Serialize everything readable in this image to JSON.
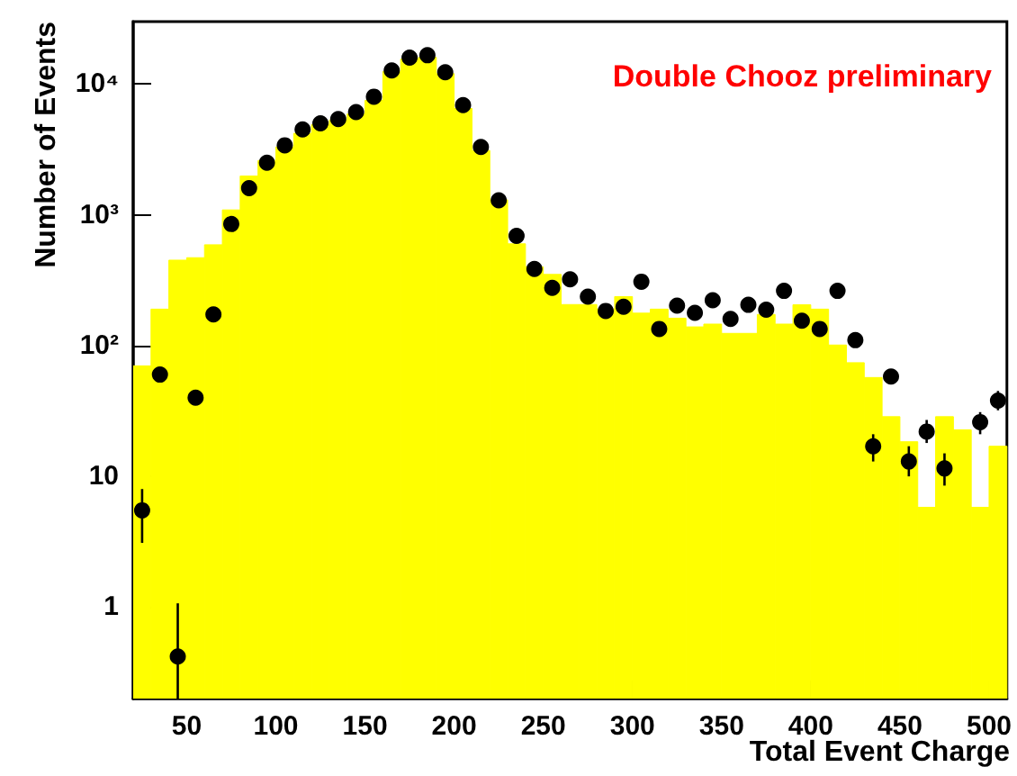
{
  "chart_data": {
    "type": "histogram",
    "xlabel": "Total Event Charge",
    "ylabel": "Number of Events",
    "annotations": [
      "Double Chooz preliminary"
    ],
    "log": "y",
    "marker": "circle",
    "xlim": [
      20,
      510
    ],
    "xticks": [
      50,
      100,
      150,
      200,
      250,
      300,
      350,
      400,
      450,
      500
    ],
    "ylim": [
      0.2,
      30000
    ],
    "yticks": [
      {
        "value": 1,
        "label": "1"
      },
      {
        "value": 10,
        "label": "10"
      },
      {
        "value": 100,
        "label": "10²"
      },
      {
        "value": 1000,
        "label": "10³"
      },
      {
        "value": 10000,
        "label": "10⁴"
      }
    ],
    "bins": [
      20,
      30,
      40,
      50,
      60,
      70,
      80,
      90,
      100,
      110,
      120,
      130,
      140,
      150,
      160,
      170,
      180,
      190,
      200,
      210,
      220,
      230,
      240,
      250,
      260,
      270,
      280,
      290,
      300,
      310,
      320,
      330,
      340,
      350,
      360,
      370,
      380,
      390,
      400,
      410,
      420,
      430,
      440,
      450,
      460,
      470,
      480,
      490,
      500,
      510
    ],
    "series": [
      {
        "color": "#ffff00",
        "values": [
          70,
          190,
          450,
          470,
          590,
          1090,
          1980,
          2600,
          3300,
          4200,
          4900,
          5300,
          5900,
          7500,
          12500,
          15500,
          16000,
          12000,
          6500,
          3100,
          1300,
          600,
          400,
          350,
          206,
          206,
          190,
          237,
          177,
          190,
          162,
          139,
          146,
          124,
          124,
          173,
          146,
          205,
          190,
          101,
          74,
          57,
          28.6,
          18.4,
          5.8,
          28.6,
          22.7,
          5.8,
          17
        ]
      },
      {
        "type": "scatter",
        "color": "#000000",
        "x": [
          25,
          35,
          45,
          55,
          65,
          75,
          85,
          95,
          105,
          115,
          125,
          135,
          145,
          155,
          165,
          175,
          185,
          195,
          205,
          215,
          225,
          235,
          245,
          255,
          265,
          275,
          285,
          295,
          305,
          315,
          325,
          335,
          345,
          355,
          365,
          375,
          385,
          395,
          405,
          415,
          425,
          435,
          445,
          455,
          465,
          475,
          485,
          495,
          505
        ],
        "values": [
          5.5,
          60,
          0.42,
          40,
          173,
          850,
          1600,
          2500,
          3400,
          4500,
          5000,
          5400,
          6100,
          8000,
          12700,
          15900,
          16600,
          12300,
          6900,
          3300,
          1290,
          690,
          385,
          276,
          321,
          237,
          184,
          198,
          308,
          134,
          202,
          178,
          222,
          160,
          205,
          188,
          262,
          155,
          134,
          262,
          110,
          17,
          58,
          13,
          22,
          11.5,
          null,
          26,
          38
        ],
        "errors": [
          [
            3.1,
            8
          ],
          null,
          [
            0.2,
            1.07
          ],
          null,
          null,
          null,
          null,
          null,
          null,
          null,
          null,
          null,
          null,
          null,
          null,
          null,
          null,
          null,
          null,
          null,
          null,
          null,
          null,
          null,
          null,
          null,
          null,
          null,
          null,
          null,
          null,
          null,
          null,
          null,
          null,
          null,
          null,
          null,
          null,
          null,
          null,
          [
            13,
            21
          ],
          null,
          [
            10,
            17
          ],
          [
            18,
            27
          ],
          [
            8.5,
            15
          ],
          null,
          [
            21,
            31
          ],
          [
            32,
            45
          ]
        ]
      }
    ]
  }
}
